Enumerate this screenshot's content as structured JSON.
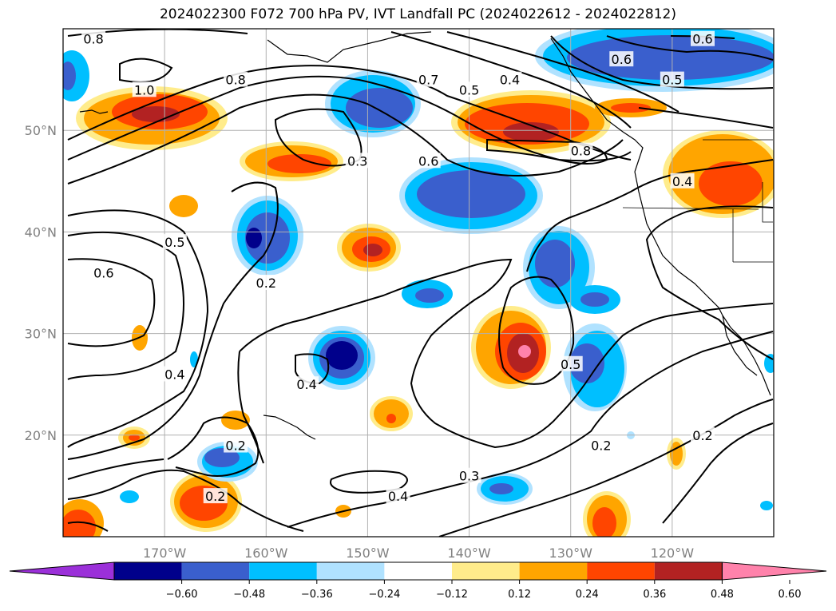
{
  "title": "2024022300 F072 700 hPa PV, IVT Landfall PC (2024022612 - 2024022812)",
  "map": {
    "projection": "PlateCarree",
    "extent": {
      "lon_min": -180,
      "lon_max": -110,
      "lat_min": 10,
      "lat_max": 60
    },
    "lat_ticks": [
      {
        "value": 20,
        "label": "20°N"
      },
      {
        "value": 30,
        "label": "30°N"
      },
      {
        "value": 40,
        "label": "40°N"
      },
      {
        "value": 50,
        "label": "50°N"
      }
    ],
    "lon_ticks": [
      {
        "value": -170,
        "label": "170°W"
      },
      {
        "value": -160,
        "label": "160°W"
      },
      {
        "value": -150,
        "label": "150°W"
      },
      {
        "value": -140,
        "label": "140°W"
      },
      {
        "value": -130,
        "label": "130°W"
      },
      {
        "value": -120,
        "label": "120°W"
      }
    ],
    "gridlines": true,
    "contour_color": "#000000",
    "contour_labels": [
      {
        "text": "0.8",
        "lon": -177,
        "lat": 59
      },
      {
        "text": "1.0",
        "lon": -172,
        "lat": 54
      },
      {
        "text": "0.8",
        "lon": -163,
        "lat": 55
      },
      {
        "text": "0.7",
        "lon": -144,
        "lat": 55
      },
      {
        "text": "0.5",
        "lon": -140,
        "lat": 54
      },
      {
        "text": "0.4",
        "lon": -136,
        "lat": 55
      },
      {
        "text": "0.6",
        "lon": -117,
        "lat": 59
      },
      {
        "text": "0.6",
        "lon": -125,
        "lat": 57
      },
      {
        "text": "0.5",
        "lon": -120,
        "lat": 55
      },
      {
        "text": "0.3",
        "lon": -151,
        "lat": 47
      },
      {
        "text": "0.6",
        "lon": -144,
        "lat": 47
      },
      {
        "text": "0.8",
        "lon": -129,
        "lat": 48
      },
      {
        "text": "0.4",
        "lon": -119,
        "lat": 45
      },
      {
        "text": "0.5",
        "lon": -169,
        "lat": 39
      },
      {
        "text": "0.6",
        "lon": -176,
        "lat": 36
      },
      {
        "text": "0.2",
        "lon": -160,
        "lat": 35
      },
      {
        "text": "0.4",
        "lon": -169,
        "lat": 26
      },
      {
        "text": "0.4",
        "lon": -156,
        "lat": 25
      },
      {
        "text": "0.5",
        "lon": -130,
        "lat": 27
      },
      {
        "text": "0.2",
        "lon": -163,
        "lat": 19
      },
      {
        "text": "0.2",
        "lon": -127,
        "lat": 19
      },
      {
        "text": "0.2",
        "lon": -117,
        "lat": 20
      },
      {
        "text": "0.3",
        "lon": -140,
        "lat": 16
      },
      {
        "text": "0.4",
        "lon": -147,
        "lat": 14
      },
      {
        "text": "0.2",
        "lon": -165,
        "lat": 14
      }
    ]
  },
  "colorbar": {
    "ticks": [
      "−0.60",
      "−0.48",
      "−0.36",
      "−0.24",
      "−0.12",
      "0.12",
      "0.24",
      "0.36",
      "0.48",
      "0.60"
    ],
    "colors": [
      "#9b30d9",
      "#00008b",
      "#3a5fcd",
      "#00bfff",
      "#b0e2ff",
      "#ffffff",
      "#ffec8b",
      "#ffa500",
      "#ff4500",
      "#b22222",
      "#ff82ab"
    ],
    "extend": "both"
  }
}
